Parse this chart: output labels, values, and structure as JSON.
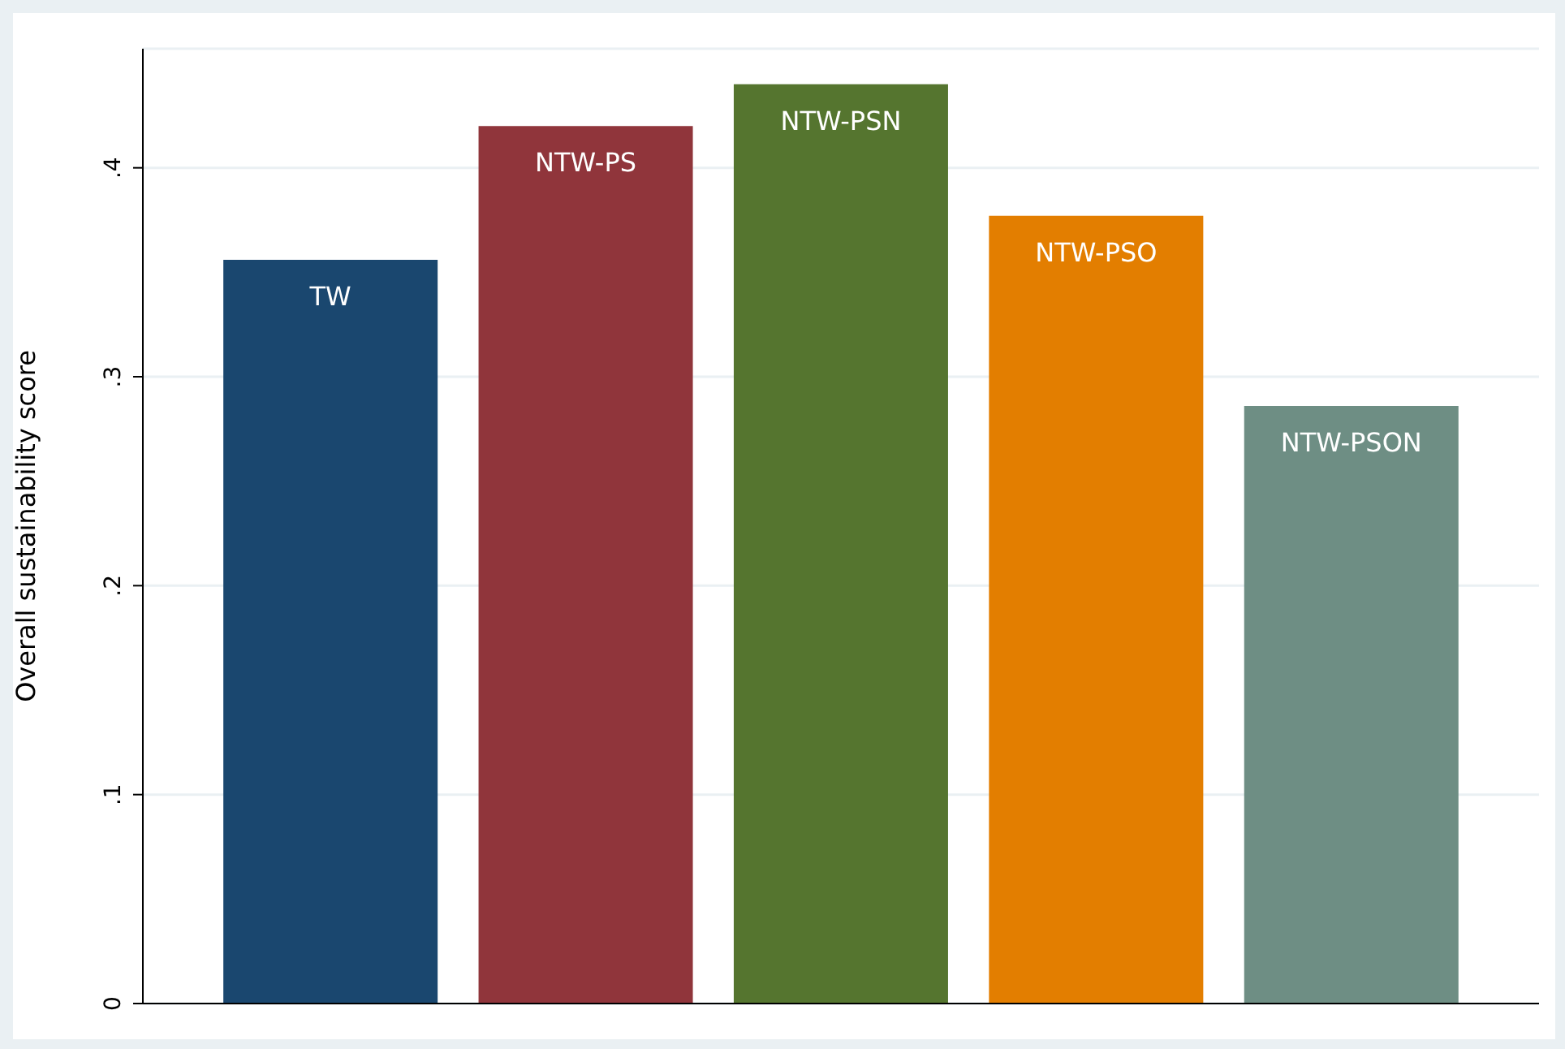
{
  "chart_data": {
    "type": "bar",
    "ylabel": "Overall sustainability score",
    "categories": [
      "TW",
      "NTW-PS",
      "NTW-PSN",
      "NTW-PSO",
      "NTW-PSON"
    ],
    "values": [
      0.356,
      0.42,
      0.44,
      0.377,
      0.286
    ],
    "colors": [
      "#1a476f",
      "#90353b",
      "#55752f",
      "#e37e00",
      "#6e8e84"
    ],
    "ylim": [
      0,
      0.457
    ],
    "yticks": [
      0,
      {
        "value": 0.1,
        "label": ".1"
      },
      {
        "value": 0.2,
        "label": ".2"
      },
      {
        "value": 0.3,
        "label": ".3"
      },
      {
        "value": 0.4,
        "label": ".4"
      }
    ],
    "grid": "y"
  }
}
